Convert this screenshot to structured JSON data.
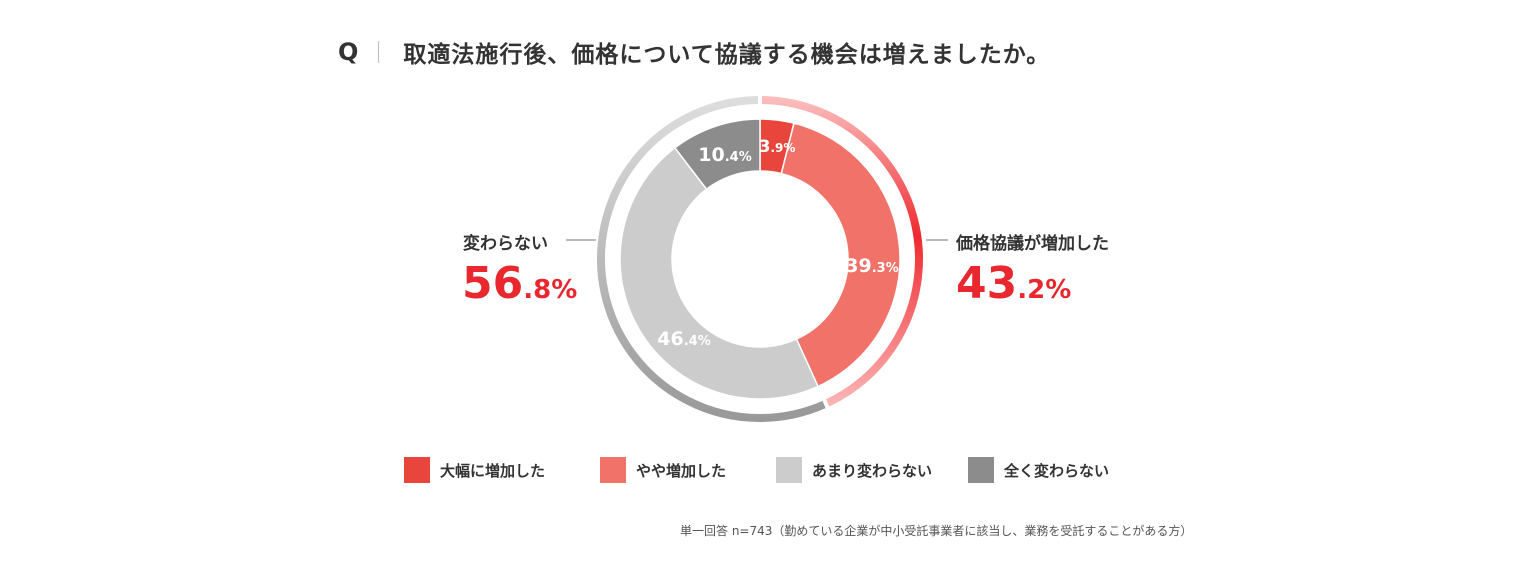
{
  "question": {
    "mark": "Q",
    "text": "取適法施行後、価格について協議する機会は増えましたか。"
  },
  "chart_data": {
    "type": "pie",
    "title": "取適法施行後、価格について協議する機会は増えましたか。",
    "categories": [
      "大幅に増加した",
      "やや増加した",
      "あまり変わらない",
      "全く変わらない"
    ],
    "values": [
      3.9,
      39.3,
      46.4,
      10.4
    ],
    "colors": [
      "#e8463c",
      "#f07268",
      "#cccccc",
      "#8c8c8c"
    ],
    "slice_labels": [
      {
        "num": "3",
        "dec": ".9%"
      },
      {
        "num": "39",
        "dec": ".3%"
      },
      {
        "num": "46",
        "dec": ".4%"
      },
      {
        "num": "10",
        "dec": ".4%"
      }
    ],
    "groups": [
      {
        "label": "価格協議が増加した",
        "value": 43.2,
        "num": "43",
        "dec": ".2%"
      },
      {
        "label": "変わらない",
        "value": 56.8,
        "num": "56",
        "dec": ".8%"
      }
    ],
    "legend_position": "bottom"
  },
  "legend": [
    {
      "label": "大幅に増加した",
      "color": "#e8463c"
    },
    {
      "label": "やや増加した",
      "color": "#f07268"
    },
    {
      "label": "あまり変わらない",
      "color": "#cccccc"
    },
    {
      "label": "全く変わらない",
      "color": "#8c8c8c"
    }
  ],
  "footnote": "単一回答 n=743（勤めている企業が中小受託事業者に該当し、業務を受託することがある方）"
}
